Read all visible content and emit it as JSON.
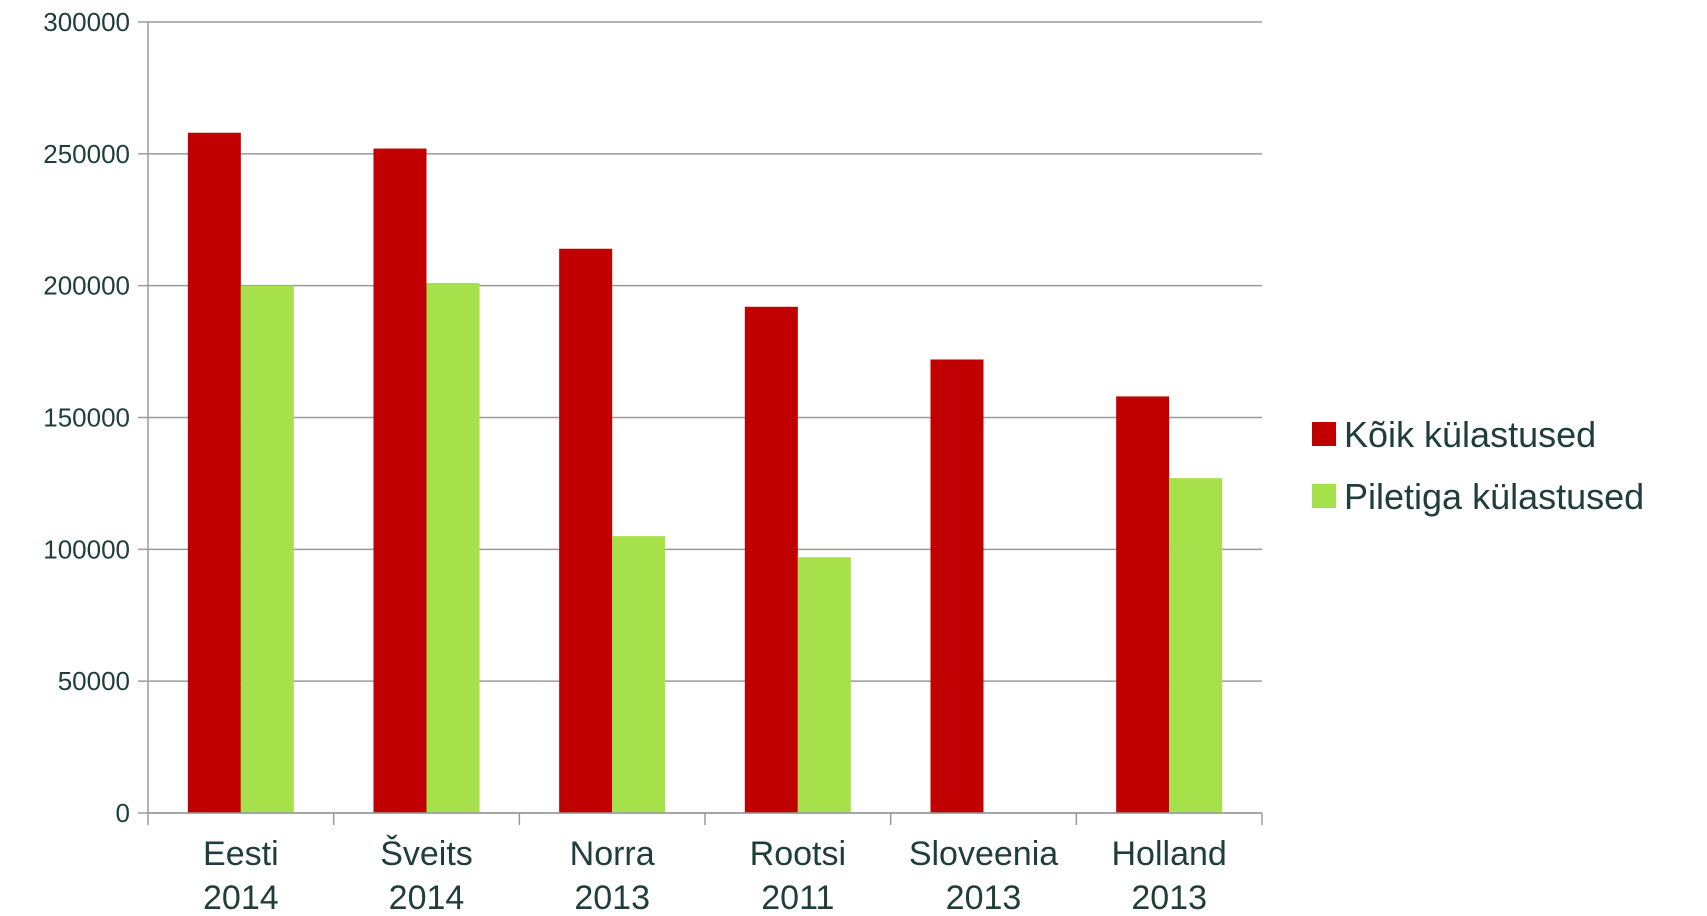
{
  "chart_data": {
    "type": "bar",
    "categories": [
      [
        "Eesti",
        "2014"
      ],
      [
        "Šveits",
        "2014"
      ],
      [
        "Norra",
        "2013"
      ],
      [
        "Rootsi",
        "2011"
      ],
      [
        "Sloveenia",
        "2013"
      ],
      [
        "Holland",
        "2013"
      ]
    ],
    "series": [
      {
        "name": "Kõik külastused",
        "color": "#c00000",
        "values": [
          258000,
          252000,
          214000,
          192000,
          172000,
          158000
        ]
      },
      {
        "name": "Piletiga külastused",
        "color": "#a6e04a",
        "values": [
          200000,
          201000,
          105000,
          97000,
          null,
          127000
        ]
      }
    ],
    "ylim": [
      0,
      300000
    ],
    "yticks": [
      "0",
      "50000",
      "100000",
      "150000",
      "200000",
      "250000",
      "300000"
    ],
    "grid": true,
    "legend_position": "right"
  }
}
